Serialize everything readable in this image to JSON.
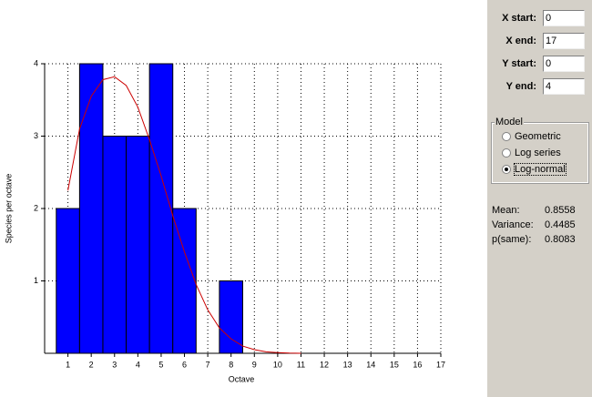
{
  "chart_data": {
    "type": "histogram",
    "xlabel": "Octave",
    "ylabel": "Species per octave",
    "bins": [
      0.5,
      1.5,
      2.5,
      3.5,
      4.5,
      5.5,
      6.5,
      7.5,
      8.5
    ],
    "values": [
      2,
      4,
      3,
      3,
      4,
      2,
      0,
      1
    ],
    "color": "#0000ff",
    "fit": {
      "color": "#cc0000",
      "x": [
        1,
        1.5,
        2,
        2.5,
        3,
        3.5,
        4,
        4.5,
        5,
        5.5,
        6,
        6.5,
        7,
        7.5,
        8,
        8.5,
        9,
        9.5,
        10,
        10.5,
        11
      ],
      "values": [
        2.25,
        3.1,
        3.55,
        3.78,
        3.82,
        3.7,
        3.4,
        2.95,
        2.45,
        1.9,
        1.4,
        0.95,
        0.6,
        0.35,
        0.2,
        0.1,
        0.05,
        0.02,
        0.01,
        0.003,
        0
      ]
    },
    "xlim": [
      0,
      17
    ],
    "ylim": [
      0,
      4
    ],
    "xticks": [
      1,
      2,
      3,
      4,
      5,
      6,
      7,
      8,
      9,
      10,
      11,
      12,
      13,
      14,
      15,
      16,
      17
    ],
    "yticks": [
      1,
      2,
      3,
      4
    ],
    "grid": true
  },
  "panel": {
    "fields": [
      {
        "label": "X start:",
        "value": "0"
      },
      {
        "label": "X end:",
        "value": "17"
      },
      {
        "label": "Y start:",
        "value": "0"
      },
      {
        "label": "Y end:",
        "value": "4"
      }
    ],
    "model": {
      "title": "Model",
      "options": [
        "Geometric",
        "Log series",
        "Log-normal"
      ],
      "selected": 2
    },
    "stats": [
      {
        "label": "Mean:",
        "value": "0.8558"
      },
      {
        "label": "Variance:",
        "value": "0.4485"
      },
      {
        "label": "p(same):",
        "value": "0.8083"
      }
    ]
  }
}
